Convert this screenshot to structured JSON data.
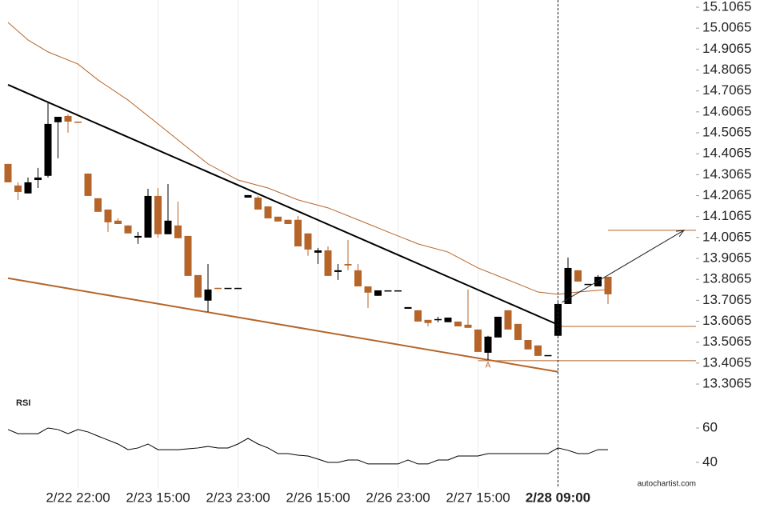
{
  "chart_data": [
    {
      "type": "candlestick",
      "categories": [
        null,
        null,
        null,
        null,
        null,
        null,
        null,
        "2/22 22:00",
        null,
        null,
        null,
        null,
        null,
        null,
        null,
        "2/23 15:00",
        null,
        null,
        null,
        null,
        null,
        null,
        null,
        "2/23 23:00",
        null,
        null,
        null,
        null,
        null,
        null,
        null,
        "2/26 15:00",
        null,
        null,
        null,
        null,
        null,
        null,
        null,
        "2/26 23:00",
        null,
        null,
        null,
        null,
        null,
        null,
        null,
        "2/27 15:00",
        null,
        null,
        null,
        null,
        null,
        null,
        null,
        "2/28 09:00",
        null,
        null,
        null,
        null,
        null
      ],
      "open": [
        14.358,
        14.255,
        14.217,
        14.281,
        14.301,
        14.557,
        14.587,
        14.56,
        14.312,
        14.194,
        14.14,
        14.087,
        14.064,
        14.006,
        14.006,
        14.205,
        14.022,
        14.064,
        14.014,
        13.827,
        13.705,
        13.766,
        13.766,
        13.766,
        14.197,
        14.197,
        14.155,
        14.106,
        14.091,
        14.091,
        14.026,
        13.934,
        13.945,
        13.842,
        13.88,
        13.85,
        13.773,
        13.728,
        13.754,
        13.754,
        13.666,
        13.659,
        13.613,
        13.617,
        13.602,
        13.605,
        13.59,
        13.567,
        13.456,
        13.529,
        13.659,
        13.594,
        13.517,
        13.491,
        13.445,
        13.537,
        13.689,
        13.85,
        13.785,
        13.773,
        13.819
      ],
      "high": [
        14.358,
        14.27,
        14.293,
        14.339,
        14.652,
        14.583,
        14.595,
        14.56,
        14.312,
        14.194,
        14.14,
        14.098,
        14.064,
        14.033,
        14.239,
        14.243,
        14.262,
        14.178,
        14.014,
        13.827,
        13.88,
        13.766,
        13.766,
        13.766,
        14.209,
        14.205,
        14.155,
        14.106,
        14.091,
        14.11,
        14.026,
        13.957,
        13.964,
        13.88,
        13.995,
        13.88,
        13.773,
        13.754,
        13.754,
        13.754,
        13.674,
        13.659,
        13.613,
        13.628,
        13.624,
        13.605,
        13.758,
        13.567,
        13.537,
        13.628,
        13.659,
        13.594,
        13.517,
        13.491,
        13.445,
        13.697,
        13.911,
        13.85,
        13.785,
        13.827,
        13.819
      ],
      "low": [
        14.27,
        14.186,
        14.217,
        14.243,
        14.293,
        14.385,
        14.507,
        14.557,
        14.205,
        14.129,
        14.033,
        14.071,
        14.026,
        13.976,
        14.006,
        14.006,
        14.022,
        14.003,
        13.823,
        13.72,
        13.651,
        13.762,
        13.766,
        13.766,
        14.197,
        14.14,
        14.098,
        14.083,
        14.071,
        13.964,
        13.919,
        13.88,
        13.823,
        13.804,
        13.85,
        13.773,
        13.67,
        13.728,
        13.754,
        13.754,
        13.666,
        13.605,
        13.582,
        13.602,
        13.602,
        13.582,
        13.575,
        13.46,
        13.422,
        13.529,
        13.567,
        13.517,
        13.472,
        13.441,
        13.445,
        13.529,
        13.689,
        13.796,
        13.785,
        13.773,
        13.689
      ],
      "close": [
        14.27,
        14.224,
        14.27,
        14.293,
        14.549,
        14.583,
        14.56,
        14.557,
        14.205,
        14.129,
        14.079,
        14.071,
        14.026,
        14.014,
        14.205,
        14.022,
        14.087,
        14.003,
        13.823,
        13.72,
        13.758,
        13.762,
        13.766,
        13.766,
        14.209,
        14.14,
        14.098,
        14.083,
        14.071,
        13.964,
        13.949,
        13.945,
        13.823,
        13.85,
        13.873,
        13.773,
        13.743,
        13.754,
        13.754,
        13.754,
        13.674,
        13.605,
        13.598,
        13.617,
        13.624,
        13.582,
        13.575,
        13.46,
        13.533,
        13.628,
        13.567,
        13.517,
        13.472,
        13.441,
        13.445,
        13.689,
        13.861,
        13.796,
        13.785,
        13.819,
        13.735
      ],
      "up_color": "#000000",
      "down_color": "#b5652a",
      "ylim": [
        13.2685,
        15.1409
      ],
      "yticks": [
        15.1065,
        15.0065,
        14.9065,
        14.8065,
        14.7065,
        14.6065,
        14.5065,
        14.4065,
        14.3065,
        14.2065,
        14.1065,
        14.0065,
        13.9065,
        13.8065,
        13.7065,
        13.6065,
        13.5065,
        13.4065,
        13.3065
      ],
      "grid": "x",
      "moving_average": {
        "x": [
          0,
          2,
          4,
          7,
          9,
          12,
          15,
          18,
          20,
          23,
          26,
          29,
          32,
          35,
          38,
          41,
          44,
          47,
          50,
          53,
          55,
          57,
          60
        ],
        "values": [
          15.034,
          14.95,
          14.893,
          14.835,
          14.759,
          14.663,
          14.549,
          14.434,
          14.358,
          14.281,
          14.243,
          14.186,
          14.148,
          14.091,
          14.033,
          13.976,
          13.937,
          13.861,
          13.804,
          13.746,
          13.735,
          13.746,
          13.758
        ],
        "color": "#b5652a"
      },
      "trendlines": [
        {
          "x": [
            0,
            55
          ],
          "values": [
            14.736,
            13.59
          ],
          "color": "#000000"
        },
        {
          "x": [
            0,
            55
          ],
          "values": [
            13.812,
            13.365
          ],
          "color": "#b5652a"
        }
      ],
      "levels": [
        {
          "value": 13.582,
          "from": 55
        },
        {
          "value": 13.418,
          "from": 47
        },
        {
          "value": 14.041,
          "from": 60
        }
      ],
      "level_color": "#b5652a",
      "arrow": {
        "x": [
          55.4,
          67.6
        ],
        "values": [
          13.697,
          14.041
        ]
      },
      "marker": {
        "label": "A",
        "x": 48,
        "value": 13.395
      },
      "vline": 55
    },
    {
      "type": "line",
      "title": "RSI",
      "values": [
        59.1,
        56.7,
        56.7,
        56.7,
        60,
        59.1,
        56.7,
        59.1,
        57.7,
        55.3,
        53.0,
        50.7,
        47.4,
        48.4,
        50.7,
        47.4,
        47.4,
        47.4,
        47.9,
        48.4,
        49.3,
        48.4,
        48.4,
        50.7,
        54.0,
        50.7,
        48.4,
        45.1,
        45.1,
        44.2,
        43.7,
        41.9,
        40.0,
        40.0,
        41.4,
        41.4,
        39.1,
        39.1,
        39.1,
        39.1,
        41.4,
        39.1,
        39.1,
        41.4,
        41.4,
        43.7,
        43.7,
        43.7,
        45.1,
        45.1,
        45.1,
        45.1,
        45.1,
        45.1,
        45.1,
        48.4,
        47.0,
        45.1,
        45.1,
        47.4,
        47.4
      ],
      "color": "#000000",
      "ylim": [
        30,
        70
      ],
      "yticks": [
        40,
        60
      ]
    }
  ],
  "footer": "autochartist.com"
}
